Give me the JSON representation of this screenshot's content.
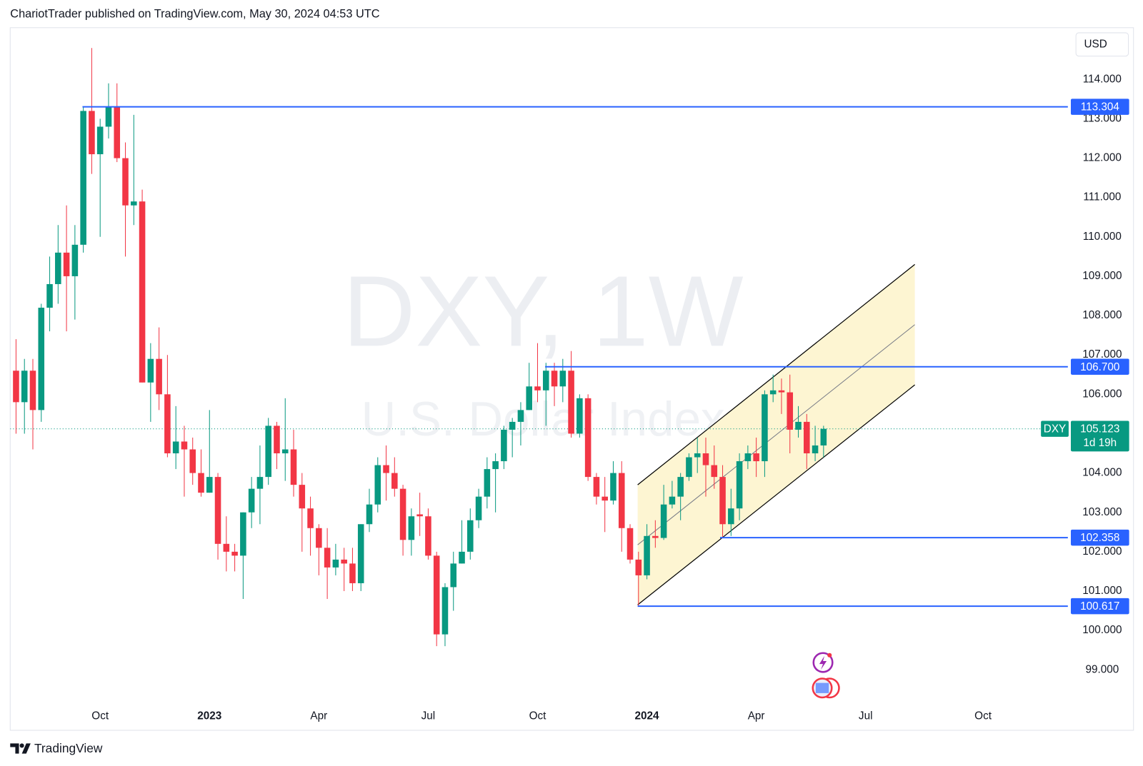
{
  "header": "ChariotTrader published on TradingView.com, May 30, 2024 04:53 UTC",
  "footer": "TradingView",
  "chart_data": {
    "type": "candlestick",
    "watermark_title": "DXY, 1W",
    "watermark_subtitle": "U.S. Dollar Index",
    "currency": "USD",
    "up_color": "#089981",
    "down_color": "#f23645",
    "x": [
      0,
      1,
      2,
      3,
      4,
      5,
      6,
      7,
      8,
      9,
      10,
      11,
      12,
      13,
      14,
      15,
      16,
      17,
      18,
      19,
      20,
      21,
      22,
      23,
      24,
      25,
      26,
      27,
      28,
      29,
      30,
      31,
      32,
      33,
      34,
      35,
      36,
      37,
      38,
      39,
      40,
      41,
      42,
      43,
      44,
      45,
      46,
      47,
      48,
      49,
      50,
      51,
      52,
      53,
      54,
      55,
      56,
      57,
      58,
      59,
      60,
      61,
      62,
      63,
      64,
      65,
      66,
      67,
      68,
      69,
      70,
      71,
      72,
      73,
      74,
      75,
      76,
      77,
      78,
      79,
      80,
      81,
      82,
      83,
      84,
      85,
      86,
      87,
      88,
      89,
      90,
      91,
      92,
      93,
      94,
      95,
      96
    ],
    "open": [
      106.6,
      105.8,
      106.6,
      105.6,
      108.2,
      108.8,
      109.6,
      109.0,
      109.8,
      113.2,
      112.1,
      112.8,
      113.3,
      112.0,
      110.8,
      110.9,
      106.3,
      106.9,
      106.0,
      104.5,
      104.8,
      104.6,
      104.0,
      103.5,
      103.9,
      102.2,
      102.0,
      101.9,
      103.0,
      103.6,
      103.9,
      105.2,
      104.5,
      104.6,
      103.7,
      103.1,
      102.6,
      102.1,
      101.6,
      101.8,
      101.7,
      101.2,
      102.7,
      103.2,
      104.2,
      104.0,
      103.6,
      102.3,
      102.95,
      102.9,
      101.9,
      99.9,
      101.1,
      101.7,
      102.0,
      102.8,
      103.4,
      104.1,
      104.3,
      105.1,
      105.3,
      105.6,
      106.2,
      106.1,
      106.6,
      106.2,
      106.6,
      105.0,
      105.9,
      103.9,
      103.4,
      103.3,
      104.0,
      102.6,
      101.8,
      101.4,
      102.4,
      102.35,
      103.2,
      103.4,
      103.9,
      104.4,
      104.5,
      104.2,
      103.9,
      102.7,
      103.1,
      104.3,
      104.5,
      104.3,
      106.0,
      106.1,
      106.05,
      105.1,
      105.3,
      104.5,
      104.7
    ],
    "high": [
      107.4,
      106.9,
      106.9,
      108.3,
      109.5,
      110.3,
      110.8,
      110.3,
      113.3,
      114.8,
      113.0,
      113.9,
      113.9,
      112.4,
      113.1,
      111.2,
      107.3,
      107.7,
      107.0,
      105.7,
      105.2,
      104.9,
      104.6,
      105.6,
      104.0,
      102.9,
      102.2,
      103.0,
      103.9,
      104.7,
      105.4,
      105.3,
      105.9,
      105.1,
      104.0,
      103.4,
      102.7,
      102.6,
      102.2,
      102.1,
      102.1,
      102.7,
      103.6,
      104.4,
      104.7,
      104.4,
      103.7,
      103.1,
      103.5,
      103.1,
      102.0,
      101.2,
      102.0,
      102.8,
      103.1,
      103.6,
      104.4,
      104.5,
      105.2,
      105.4,
      105.8,
      106.8,
      107.3,
      106.8,
      106.8,
      106.9,
      107.1,
      106.0,
      106.0,
      104.0,
      103.9,
      104.3,
      104.3,
      102.7,
      102.0,
      102.7,
      102.8,
      103.7,
      103.8,
      104.0,
      104.5,
      104.9,
      104.9,
      104.7,
      104.2,
      103.6,
      104.5,
      104.7,
      104.9,
      106.1,
      106.5,
      106.4,
      106.5,
      105.7,
      105.5,
      105.2,
      105.2
    ],
    "low": [
      105.0,
      105.0,
      104.6,
      105.3,
      107.6,
      108.3,
      107.6,
      107.9,
      109.6,
      111.6,
      110.0,
      112.5,
      111.9,
      109.5,
      110.3,
      106.3,
      105.3,
      105.6,
      104.4,
      104.1,
      103.4,
      103.7,
      103.4,
      103.5,
      101.8,
      101.5,
      101.5,
      100.8,
      102.6,
      102.7,
      103.7,
      104.1,
      103.8,
      103.4,
      102.0,
      101.9,
      101.4,
      100.8,
      101.4,
      101.0,
      101.0,
      101.0,
      102.5,
      103.0,
      103.3,
      103.4,
      101.9,
      101.9,
      102.4,
      101.8,
      99.6,
      99.6,
      100.5,
      101.7,
      101.8,
      102.6,
      103.1,
      103.0,
      104.1,
      104.4,
      104.7,
      105.6,
      105.8,
      105.2,
      105.7,
      105.8,
      104.9,
      104.9,
      103.8,
      103.2,
      102.5,
      103.2,
      102.0,
      101.7,
      100.617,
      101.3,
      102.1,
      102.3,
      103.1,
      102.8,
      103.8,
      104.0,
      103.4,
      103.6,
      102.358,
      102.4,
      102.8,
      104.1,
      103.9,
      103.9,
      105.8,
      105.5,
      104.5,
      104.9,
      104.1,
      104.3,
      104.4
    ],
    "close": [
      105.8,
      106.6,
      105.6,
      108.2,
      108.8,
      109.6,
      109.0,
      109.8,
      113.2,
      112.1,
      112.8,
      113.3,
      112.0,
      110.8,
      110.9,
      106.3,
      106.9,
      106.0,
      104.5,
      104.8,
      104.6,
      104.0,
      103.5,
      103.9,
      102.2,
      102.0,
      101.9,
      103.0,
      103.6,
      103.9,
      105.2,
      104.5,
      104.6,
      103.7,
      103.1,
      102.6,
      102.1,
      101.6,
      101.8,
      101.7,
      101.2,
      102.7,
      103.2,
      104.2,
      104.0,
      103.6,
      102.3,
      102.9,
      102.9,
      101.9,
      99.9,
      101.1,
      101.7,
      102.0,
      102.8,
      103.4,
      104.1,
      104.3,
      105.1,
      105.3,
      105.6,
      106.2,
      106.1,
      106.6,
      106.2,
      106.6,
      105.0,
      105.9,
      103.9,
      103.4,
      103.3,
      104.0,
      102.6,
      101.8,
      101.4,
      102.4,
      102.35,
      103.2,
      103.4,
      103.9,
      104.4,
      104.5,
      104.2,
      103.9,
      102.7,
      103.1,
      104.3,
      104.5,
      104.3,
      106.0,
      106.1,
      106.05,
      105.1,
      105.3,
      104.5,
      104.7,
      105.123
    ],
    "xlim": [
      -0.693,
      125.05
    ],
    "ylim": [
      97.5,
      115.278
    ],
    "xticks": [
      {
        "value": 10,
        "label": "Oct"
      },
      {
        "value": 23,
        "label": "2023"
      },
      {
        "value": 36,
        "label": "Apr"
      },
      {
        "value": 49,
        "label": "Jul"
      },
      {
        "value": 62,
        "label": "Oct"
      },
      {
        "value": 75,
        "label": "2024"
      },
      {
        "value": 88,
        "label": "Apr"
      },
      {
        "value": 101,
        "label": "Jul"
      },
      {
        "value": 114.96,
        "label": "Oct"
      }
    ],
    "yticks": [
      {
        "value": 99,
        "label": "99.000"
      },
      {
        "value": 100,
        "label": "100.000"
      },
      {
        "value": 101,
        "label": "101.000"
      },
      {
        "value": 102,
        "label": "102.000"
      },
      {
        "value": 103,
        "label": "103.000"
      },
      {
        "value": 104,
        "label": "104.000"
      },
      {
        "value": 105,
        "label": "105.000"
      },
      {
        "value": 106,
        "label": "106.000"
      },
      {
        "value": 107,
        "label": "107.000"
      },
      {
        "value": 108,
        "label": "108.000"
      },
      {
        "value": 109,
        "label": "109.000"
      },
      {
        "value": 110,
        "label": "110.000"
      },
      {
        "value": 111,
        "label": "111.000"
      },
      {
        "value": 112,
        "label": "112.000"
      },
      {
        "value": 113,
        "label": "113.000"
      },
      {
        "value": 114,
        "label": "114.000"
      }
    ],
    "grid": false,
    "levels": [
      {
        "value": 113.304,
        "x_start": 7.9,
        "color": "#2962ff"
      },
      {
        "value": 106.7,
        "label": "106.700",
        "x_start": 62.9,
        "color": "#2962ff"
      },
      {
        "value": 102.358,
        "x_start": 83.7,
        "color": "#2962ff"
      },
      {
        "value": 100.617,
        "x_start": 73.9,
        "color": "#2962ff"
      }
    ],
    "channel": {
      "x": [
        73.9,
        106.85
      ],
      "upper": [
        103.7,
        109.3
      ],
      "lower": [
        100.65,
        106.24
      ],
      "fill": "#fdf5d2"
    },
    "last_price": {
      "symbol": "DXY",
      "value": 105.123,
      "countdown": "1d 19h",
      "color": "#089981"
    }
  }
}
